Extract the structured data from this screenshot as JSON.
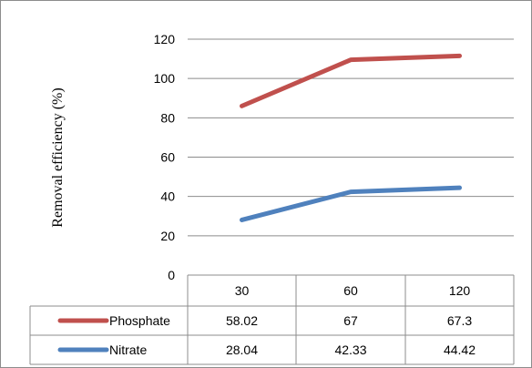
{
  "chart_data": {
    "type": "line",
    "ylabel": "Removal efficiency (%)",
    "ylim": [
      0,
      120
    ],
    "yticks": [
      0,
      20,
      40,
      60,
      80,
      100,
      120
    ],
    "categories": [
      "30",
      "60",
      "120"
    ],
    "series": [
      {
        "name": "Phosphate",
        "color": "#c0504d",
        "plotted": [
          86,
          109.5,
          111.5
        ],
        "table_values": [
          "58.02",
          "67",
          "67.3"
        ]
      },
      {
        "name": "Nitrate",
        "color": "#4f81bd",
        "plotted": [
          28.04,
          42.33,
          44.42
        ],
        "table_values": [
          "28.04",
          "42.33",
          "44.42"
        ]
      }
    ],
    "grid": true,
    "legend": "data-table-left"
  }
}
